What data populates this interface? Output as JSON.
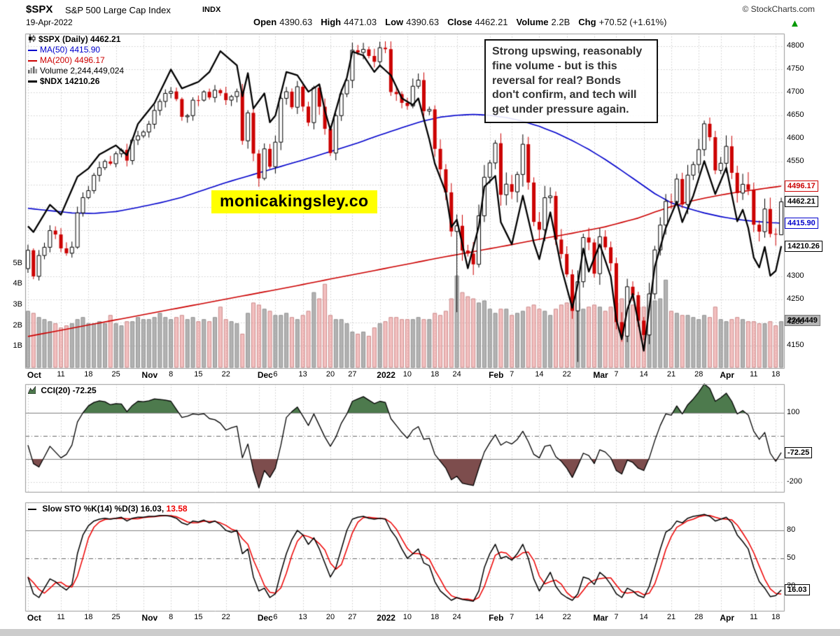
{
  "header": {
    "symbol": "$SPX",
    "name": "S&P 500 Large Cap Index",
    "exchange": "INDX",
    "copyright": "© StockCharts.com",
    "date": "19-Apr-2022",
    "arrow": "▲",
    "quote": [
      {
        "label": "Open",
        "value": "4390.63"
      },
      {
        "label": "High",
        "value": "4471.03"
      },
      {
        "label": "Low",
        "value": "4390.63"
      },
      {
        "label": "Close",
        "value": "4462.21"
      },
      {
        "label": "Volume",
        "value": "2.2B"
      },
      {
        "label": "Chg",
        "value": "+70.52 (+1.61%)"
      }
    ]
  },
  "main_chart": {
    "legend": [
      {
        "icon": "candlestick-icon",
        "text": "$SPX (Daily) 4462.21",
        "color": "#000000",
        "bold": true
      },
      {
        "icon": "ma-line-icon",
        "text": "MA(50) 4415.90",
        "color": "#0000cc",
        "bold": false
      },
      {
        "icon": "ma-line-icon",
        "text": "MA(200) 4496.17",
        "color": "#cc0000",
        "bold": false
      },
      {
        "icon": "volume-bars-icon",
        "text": "Volume 2,244,449,024",
        "color": "#000000",
        "bold": false
      },
      {
        "icon": "ndx-line-icon",
        "text": "$NDX 14210.26",
        "color": "#000000",
        "bold": true
      }
    ],
    "annotation": "Strong upswing, reasonably fine volume - but is this reversal for real? Bonds don't confirm, and tech will get under pressure again.",
    "watermark": "monicakingsley.co",
    "price_labels": [
      4800,
      4750,
      4700,
      4650,
      4600,
      4550,
      4300,
      4250,
      4200,
      4150
    ],
    "volume_axis_labels": [
      {
        "label": "5B",
        "v": 5
      },
      {
        "label": "4B",
        "v": 4
      },
      {
        "label": "3B",
        "v": 3
      },
      {
        "label": "2B",
        "v": 2
      },
      {
        "label": "1B",
        "v": 1
      }
    ],
    "axis_boxes": {
      "ma200": "4496.17",
      "close": "4462.21",
      "ma50": "4415.90",
      "ndx": "14210.26",
      "volume": "2244449"
    }
  },
  "cci_panel": {
    "label": "CCI(20) -72.25",
    "axis": [
      {
        "label": "100",
        "v": 100
      },
      {
        "label": "-200",
        "v": -200
      }
    ],
    "last_box": "-72.25"
  },
  "sto_panel": {
    "label_black": "Slow STO %K(14) %D(3) 16.03,",
    "label_red": "13.58",
    "axis": [
      {
        "label": "80",
        "v": 80
      },
      {
        "label": "50",
        "v": 50
      },
      {
        "label": "20",
        "v": 20
      }
    ],
    "last_box": "16.03"
  },
  "colors": {
    "up": "#000000",
    "down": "#cc0000",
    "ma50": "#0000cc",
    "ma200": "#cc0000",
    "ndx": "#000000",
    "cci_above": "#4d7a4d",
    "cci_below": "#7d4d4d",
    "sto_d": "#ee0000",
    "arrow_green": "#009900",
    "watermark_bg": "#ffff00",
    "grid": "#cccccc",
    "panel_border": "#999999"
  },
  "chart_data": {
    "type": "candlestick",
    "symbol": "$SPX",
    "timeframe": "Daily",
    "x_ticks": [
      {
        "i": 0,
        "label": "Oct",
        "bold": true
      },
      {
        "i": 6,
        "label": "11",
        "bold": false
      },
      {
        "i": 11,
        "label": "18",
        "bold": false
      },
      {
        "i": 16,
        "label": "25",
        "bold": false
      },
      {
        "i": 21,
        "label": "Nov",
        "bold": true
      },
      {
        "i": 26,
        "label": "8",
        "bold": false
      },
      {
        "i": 31,
        "label": "15",
        "bold": false
      },
      {
        "i": 36,
        "label": "22",
        "bold": false
      },
      {
        "i": 42,
        "label": "Dec",
        "bold": true
      },
      {
        "i": 45,
        "label": "6",
        "bold": false
      },
      {
        "i": 50,
        "label": "13",
        "bold": false
      },
      {
        "i": 55,
        "label": "20",
        "bold": false
      },
      {
        "i": 59,
        "label": "27",
        "bold": false
      },
      {
        "i": 64,
        "label": "2022",
        "bold": true
      },
      {
        "i": 69,
        "label": "10",
        "bold": false
      },
      {
        "i": 74,
        "label": "18",
        "bold": false
      },
      {
        "i": 78,
        "label": "24",
        "bold": false
      },
      {
        "i": 84,
        "label": "Feb",
        "bold": true
      },
      {
        "i": 88,
        "label": "7",
        "bold": false
      },
      {
        "i": 93,
        "label": "14",
        "bold": false
      },
      {
        "i": 98,
        "label": "22",
        "bold": false
      },
      {
        "i": 103,
        "label": "Mar",
        "bold": true
      },
      {
        "i": 107,
        "label": "7",
        "bold": false
      },
      {
        "i": 112,
        "label": "14",
        "bold": false
      },
      {
        "i": 117,
        "label": "21",
        "bold": false
      },
      {
        "i": 122,
        "label": "28",
        "bold": false
      },
      {
        "i": 126,
        "label": "Apr",
        "bold": true
      },
      {
        "i": 132,
        "label": "11",
        "bold": false
      },
      {
        "i": 136,
        "label": "18",
        "bold": false
      }
    ],
    "price_gridlines": [
      4800,
      4750,
      4700,
      4650,
      4600,
      4550,
      4500,
      4450,
      4400,
      4350,
      4300,
      4250,
      4200,
      4150
    ],
    "first_open": 4317.16,
    "last_ohlc": {
      "open": 4390.63,
      "high": 4471.03,
      "low": 4390.63,
      "close": 4462.21
    },
    "closes": [
      4357.04,
      4300.46,
      4345.72,
      4363.55,
      4399.76,
      4391.34,
      4361.19,
      4350.65,
      4363.8,
      4438.26,
      4471.37,
      4486.46,
      4519.63,
      4536.19,
      4549.78,
      4544.9,
      4566.48,
      4574.79,
      4551.68,
      4596.42,
      4605.38,
      4613.67,
      4630.65,
      4660.57,
      4680.06,
      4697.53,
      4701.7,
      4685.25,
      4646.71,
      4649.27,
      4682.85,
      4682.8,
      4700.9,
      4688.67,
      4704.54,
      4697.96,
      4682.94,
      4690.7,
      4701.46,
      4594.62,
      4655.27,
      4567.0,
      4513.04,
      4577.1,
      4538.43,
      4591.67,
      4686.75,
      4701.21,
      4667.45,
      4712.02,
      4668.97,
      4634.09,
      4709.85,
      4668.67,
      4620.64,
      4568.02,
      4649.23,
      4696.56,
      4725.79,
      4791.19,
      4786.35,
      4793.06,
      4778.73,
      4766.18,
      4796.56,
      4793.54,
      4700.58,
      4696.05,
      4677.03,
      4670.29,
      4713.07,
      4726.35,
      4659.03,
      4662.85,
      4577.11,
      4532.76,
      4482.73,
      4397.94,
      4410.13,
      4356.45,
      4349.93,
      4326.51,
      4431.85,
      4515.55,
      4546.54,
      4589.38,
      4477.44,
      4500.53,
      4483.87,
      4521.54,
      4587.18,
      4504.08,
      4418.64,
      4401.67,
      4471.07,
      4475.01,
      4380.26,
      4348.87,
      4304.76,
      4225.5,
      4288.7,
      4384.65,
      4373.94,
      4306.26,
      4386.54,
      4363.49,
      4328.87,
      4201.09,
      4170.7,
      4277.88,
      4259.52,
      4204.31,
      4173.11,
      4262.45,
      4357.86,
      4411.67,
      4463.12,
      4461.18,
      4511.61,
      4456.24,
      4520.16,
      4543.06,
      4575.52,
      4631.6,
      4602.45,
      4530.41,
      4545.86,
      4582.64,
      4525.12,
      4481.15,
      4500.21,
      4488.28,
      4412.53,
      4397.45,
      4446.59,
      4392.59,
      4391.69,
      4462.21
    ],
    "wick_overrides": [
      {
        "i": 78,
        "low": 4222.62
      },
      {
        "i": 100,
        "low": 4114.65
      },
      {
        "i": 112,
        "low": 4161.72
      }
    ],
    "volumes_billions": [
      2.7,
      2.6,
      2.4,
      2.3,
      2.2,
      2.1,
      1.9,
      2.0,
      2.1,
      2.3,
      2.4,
      2.1,
      2.1,
      2.2,
      2.1,
      2.5,
      2.1,
      2.0,
      2.2,
      2.2,
      2.4,
      2.3,
      2.3,
      2.4,
      2.6,
      2.4,
      2.3,
      2.4,
      2.5,
      2.3,
      2.4,
      2.2,
      2.3,
      2.2,
      2.4,
      2.9,
      2.3,
      2.2,
      2.1,
      1.6,
      2.6,
      3.1,
      3.0,
      2.8,
      2.7,
      2.5,
      2.5,
      2.6,
      2.4,
      2.3,
      2.5,
      2.7,
      3.6,
      3.3,
      4.0,
      2.5,
      2.3,
      2.3,
      2.1,
      1.7,
      1.6,
      1.7,
      1.5,
      1.9,
      2.1,
      2.2,
      2.4,
      2.4,
      2.3,
      2.3,
      2.3,
      2.4,
      2.3,
      2.3,
      2.6,
      2.5,
      2.7,
      3.3,
      4.4,
      3.6,
      3.4,
      3.3,
      3.1,
      3.2,
      2.8,
      2.6,
      2.8,
      2.8,
      2.5,
      2.6,
      2.7,
      2.9,
      3.0,
      2.8,
      2.7,
      2.5,
      2.8,
      3.0,
      3.1,
      3.4,
      3.1,
      2.8,
      2.9,
      3.0,
      2.9,
      2.7,
      2.9,
      3.1,
      3.3,
      3.2,
      3.0,
      2.9,
      2.9,
      3.0,
      3.2,
      3.3,
      4.2,
      2.7,
      2.6,
      2.5,
      2.5,
      2.4,
      2.3,
      2.5,
      2.4,
      2.9,
      2.3,
      2.2,
      2.3,
      2.4,
      2.3,
      2.2,
      2.2,
      2.1,
      2.1,
      2.2,
      2.0,
      2.2
    ],
    "ma50_keypoints": [
      [
        0,
        4448
      ],
      [
        4,
        4443
      ],
      [
        8,
        4438
      ],
      [
        12,
        4437
      ],
      [
        16,
        4441
      ],
      [
        20,
        4450
      ],
      [
        24,
        4460
      ],
      [
        28,
        4472
      ],
      [
        32,
        4488
      ],
      [
        36,
        4504
      ],
      [
        40,
        4518
      ],
      [
        44,
        4532
      ],
      [
        48,
        4546
      ],
      [
        52,
        4560
      ],
      [
        56,
        4575
      ],
      [
        60,
        4590
      ],
      [
        63,
        4603
      ],
      [
        66,
        4615
      ],
      [
        69,
        4627
      ],
      [
        72,
        4638
      ],
      [
        75,
        4646
      ],
      [
        78,
        4650
      ],
      [
        81,
        4652
      ],
      [
        84,
        4650
      ],
      [
        87,
        4645
      ],
      [
        90,
        4637
      ],
      [
        93,
        4626
      ],
      [
        96,
        4612
      ],
      [
        99,
        4595
      ],
      [
        102,
        4576
      ],
      [
        105,
        4554
      ],
      [
        108,
        4530
      ],
      [
        111,
        4505
      ],
      [
        114,
        4480
      ],
      [
        117,
        4460
      ],
      [
        120,
        4448
      ],
      [
        123,
        4438
      ],
      [
        126,
        4430
      ],
      [
        129,
        4424
      ],
      [
        132,
        4420
      ],
      [
        135,
        4417
      ],
      [
        137,
        4415.9
      ]
    ],
    "ma200_keypoints": [
      [
        0,
        4170
      ],
      [
        8,
        4188
      ],
      [
        16,
        4206
      ],
      [
        24,
        4224
      ],
      [
        32,
        4242
      ],
      [
        40,
        4260
      ],
      [
        48,
        4278
      ],
      [
        56,
        4297
      ],
      [
        63,
        4313
      ],
      [
        69,
        4327
      ],
      [
        75,
        4341
      ],
      [
        81,
        4354
      ],
      [
        87,
        4367
      ],
      [
        93,
        4381
      ],
      [
        99,
        4394
      ],
      [
        105,
        4408
      ],
      [
        111,
        4427
      ],
      [
        114,
        4440
      ],
      [
        117,
        4452
      ],
      [
        120,
        4462
      ],
      [
        123,
        4470
      ],
      [
        126,
        4477
      ],
      [
        129,
        4483
      ],
      [
        132,
        4488
      ],
      [
        135,
        4493
      ],
      [
        137,
        4496.17
      ]
    ],
    "ndx_keypoints": [
      [
        0,
        14450
      ],
      [
        1,
        14380
      ],
      [
        4,
        14710
      ],
      [
        6,
        14590
      ],
      [
        9,
        15050
      ],
      [
        11,
        15150
      ],
      [
        13,
        15320
      ],
      [
        16,
        15430
      ],
      [
        18,
        15310
      ],
      [
        20,
        15690
      ],
      [
        23,
        15940
      ],
      [
        26,
        16350
      ],
      [
        28,
        16120
      ],
      [
        31,
        16200
      ],
      [
        33,
        16320
      ],
      [
        35,
        16573
      ],
      [
        38,
        16400
      ],
      [
        39,
        16025
      ],
      [
        40,
        16306
      ],
      [
        41,
        15877
      ],
      [
        43,
        16060
      ],
      [
        44,
        15710
      ],
      [
        45,
        15790
      ],
      [
        47,
        16320
      ],
      [
        49,
        16280
      ],
      [
        51,
        16080
      ],
      [
        53,
        16170
      ],
      [
        54,
        15850
      ],
      [
        55,
        15620
      ],
      [
        57,
        16090
      ],
      [
        58,
        16250
      ],
      [
        59,
        16567
      ],
      [
        61,
        16520
      ],
      [
        63,
        16320
      ],
      [
        64,
        16400
      ],
      [
        66,
        16280
      ],
      [
        68,
        16000
      ],
      [
        70,
        15920
      ],
      [
        71,
        16000
      ],
      [
        73,
        15500
      ],
      [
        74,
        15210
      ],
      [
        76,
        14860
      ],
      [
        77,
        14440
      ],
      [
        78,
        14530
      ],
      [
        80,
        13940
      ],
      [
        82,
        14450
      ],
      [
        83,
        14930
      ],
      [
        85,
        15060
      ],
      [
        86,
        14500
      ],
      [
        88,
        14230
      ],
      [
        90,
        14820
      ],
      [
        92,
        14250
      ],
      [
        93,
        14050
      ],
      [
        95,
        14620
      ],
      [
        97,
        13950
      ],
      [
        99,
        13460
      ],
      [
        100,
        13750
      ],
      [
        101,
        14180
      ],
      [
        102,
        13900
      ],
      [
        104,
        14230
      ],
      [
        106,
        13840
      ],
      [
        107,
        13320
      ],
      [
        108,
        13080
      ],
      [
        109,
        13440
      ],
      [
        110,
        13630
      ],
      [
        112,
        12940
      ],
      [
        113,
        13460
      ],
      [
        114,
        13960
      ],
      [
        116,
        14430
      ],
      [
        118,
        14750
      ],
      [
        119,
        14500
      ],
      [
        121,
        14820
      ],
      [
        123,
        15240
      ],
      [
        125,
        14840
      ],
      [
        127,
        15160
      ],
      [
        129,
        14510
      ],
      [
        130,
        14650
      ],
      [
        131,
        14430
      ],
      [
        132,
        14070
      ],
      [
        133,
        13950
      ],
      [
        134,
        14200
      ],
      [
        135,
        13850
      ],
      [
        136,
        13910
      ],
      [
        137,
        14210
      ]
    ],
    "ndx_scale": {
      "ndx_min": 12500,
      "ndx_max": 16800,
      "price_min": 4060,
      "price_max": 4830
    },
    "cci": [
      -40,
      -120,
      -135,
      -90,
      -45,
      -70,
      -95,
      -80,
      -40,
      60,
      100,
      130,
      145,
      152,
      148,
      135,
      140,
      138,
      105,
      132,
      150,
      148,
      152,
      160,
      158,
      155,
      150,
      115,
      80,
      85,
      95,
      92,
      96,
      75,
      70,
      55,
      25,
      35,
      42,
      -95,
      -35,
      -150,
      -225,
      -150,
      -180,
      -140,
      -40,
      80,
      105,
      125,
      85,
      45,
      95,
      45,
      -5,
      -45,
      -5,
      55,
      95,
      150,
      160,
      170,
      155,
      140,
      150,
      145,
      75,
      45,
      15,
      -10,
      25,
      40,
      -15,
      -10,
      -80,
      -110,
      -140,
      -190,
      -175,
      -205,
      -210,
      -215,
      -140,
      -70,
      -30,
      5,
      -40,
      -25,
      -35,
      -15,
      20,
      -25,
      -80,
      -95,
      -45,
      -40,
      -90,
      -110,
      -140,
      -180,
      -130,
      -75,
      -85,
      -120,
      -60,
      -70,
      -95,
      -150,
      -165,
      -105,
      -115,
      -140,
      -150,
      -95,
      -20,
      45,
      95,
      90,
      130,
      95,
      135,
      160,
      190,
      225,
      205,
      150,
      165,
      185,
      150,
      95,
      110,
      90,
      20,
      -15,
      15,
      -75,
      -110,
      -72.25
    ],
    "cci_levels": {
      "upper": 100,
      "zero": 0,
      "lower": -100,
      "bottom": -200
    },
    "sto_k": [
      30,
      12,
      8,
      18,
      28,
      25,
      20,
      16,
      22,
      55,
      75,
      85,
      90,
      92,
      93,
      92,
      93,
      94,
      90,
      93,
      94,
      94,
      95,
      95,
      96,
      96,
      95,
      93,
      88,
      86,
      90,
      89,
      91,
      88,
      90,
      86,
      80,
      78,
      80,
      55,
      60,
      30,
      15,
      18,
      8,
      12,
      35,
      55,
      70,
      80,
      75,
      65,
      72,
      60,
      45,
      30,
      40,
      60,
      80,
      92,
      94,
      95,
      93,
      92,
      93,
      92,
      80,
      72,
      60,
      50,
      55,
      60,
      45,
      42,
      25,
      15,
      10,
      5,
      8,
      6,
      5,
      4,
      15,
      40,
      55,
      65,
      50,
      52,
      48,
      55,
      65,
      50,
      28,
      15,
      25,
      35,
      20,
      12,
      8,
      5,
      12,
      30,
      28,
      22,
      35,
      30,
      22,
      12,
      8,
      18,
      15,
      10,
      8,
      20,
      40,
      60,
      78,
      82,
      90,
      88,
      93,
      95,
      96,
      97,
      95,
      90,
      92,
      94,
      88,
      75,
      68,
      60,
      40,
      25,
      18,
      9,
      10,
      16.03
    ],
    "sto_levels": {
      "upper": 80,
      "mid": 50,
      "lower": 20
    },
    "last_values": {
      "close": 4462.21,
      "ma50": 4415.9,
      "ma200": 4496.17,
      "ndx": 14210.26,
      "cci": -72.25,
      "sto_k": 16.03,
      "sto_d": 13.58
    }
  }
}
